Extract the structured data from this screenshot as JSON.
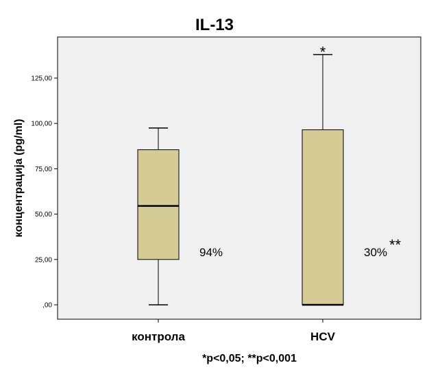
{
  "chart_data": {
    "type": "boxplot",
    "title": "IL-13",
    "ylabel": "концентрација (pg/ml)",
    "xlabel": "",
    "ylim": [
      0,
      143
    ],
    "yticks": [
      0,
      25,
      50,
      75,
      100,
      125
    ],
    "ytick_labels": [
      ",00",
      "25,00",
      "50,00",
      "75,00",
      "100,00",
      "125,00"
    ],
    "categories": [
      "контрола",
      "HCV"
    ],
    "boxes": [
      {
        "category": "контрола",
        "min": 0,
        "q1": 25,
        "median": 54.5,
        "q3": 85.5,
        "max": 97.5,
        "annotation": "94%",
        "outlier_marker": ""
      },
      {
        "category": "HCV",
        "min": 0,
        "q1": 0,
        "median": 0,
        "q3": 96.5,
        "max": 138,
        "annotation": "30%",
        "annotation_sup": "**",
        "outlier_marker": "*"
      }
    ],
    "footnote": "*p<0,05; **p<0,001",
    "grid": false,
    "colors": {
      "plot_background": "#f0f0f0",
      "box_fill": "#d4cc94",
      "line": "#000000"
    }
  }
}
